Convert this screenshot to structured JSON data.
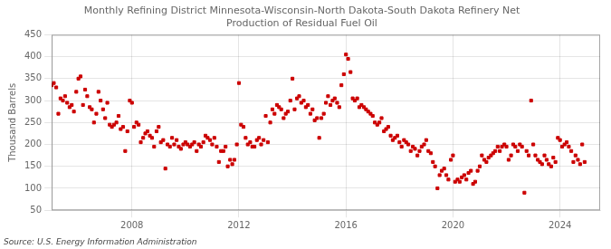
{
  "chart_data": {
    "type": "scatter",
    "title": "Monthly Refining District Minnesota-Wisconsin-North Dakota-South Dakota Refinery Net\nProduction of Residual Fuel Oil",
    "ylabel": "Thousand Barrels",
    "annotation": "Source: U.S. Energy Information Administration",
    "color": "#cc0000",
    "marker": "square",
    "grid": true,
    "xlim": [
      2005.0,
      2025.5
    ],
    "xticks": [
      2008,
      2012,
      2016,
      2020,
      2024
    ],
    "ylim": [
      50,
      450
    ],
    "yticks": [
      50,
      100,
      150,
      200,
      250,
      300,
      350,
      400,
      450
    ],
    "x": [
      2005.0,
      2005.08,
      2005.17,
      2005.25,
      2005.33,
      2005.42,
      2005.5,
      2005.58,
      2005.67,
      2005.75,
      2005.83,
      2005.92,
      2006.0,
      2006.08,
      2006.17,
      2006.25,
      2006.33,
      2006.42,
      2006.5,
      2006.58,
      2006.67,
      2006.75,
      2006.83,
      2006.92,
      2007.0,
      2007.08,
      2007.17,
      2007.25,
      2007.33,
      2007.42,
      2007.5,
      2007.58,
      2007.67,
      2007.75,
      2007.83,
      2007.92,
      2008.0,
      2008.08,
      2008.17,
      2008.25,
      2008.33,
      2008.42,
      2008.5,
      2008.58,
      2008.67,
      2008.75,
      2008.83,
      2008.92,
      2009.0,
      2009.08,
      2009.17,
      2009.25,
      2009.33,
      2009.42,
      2009.5,
      2009.58,
      2009.67,
      2009.75,
      2009.83,
      2009.92,
      2010.0,
      2010.08,
      2010.17,
      2010.25,
      2010.33,
      2010.42,
      2010.5,
      2010.58,
      2010.67,
      2010.75,
      2010.83,
      2010.92,
      2011.0,
      2011.08,
      2011.17,
      2011.25,
      2011.33,
      2011.42,
      2011.5,
      2011.58,
      2011.67,
      2011.75,
      2011.83,
      2011.92,
      2012.0,
      2012.08,
      2012.17,
      2012.25,
      2012.33,
      2012.42,
      2012.5,
      2012.58,
      2012.67,
      2012.75,
      2012.83,
      2012.92,
      2013.0,
      2013.08,
      2013.17,
      2013.25,
      2013.33,
      2013.42,
      2013.5,
      2013.58,
      2013.67,
      2013.75,
      2013.83,
      2013.92,
      2014.0,
      2014.08,
      2014.17,
      2014.25,
      2014.33,
      2014.42,
      2014.5,
      2014.58,
      2014.67,
      2014.75,
      2014.83,
      2014.92,
      2015.0,
      2015.08,
      2015.17,
      2015.25,
      2015.33,
      2015.42,
      2015.5,
      2015.58,
      2015.67,
      2015.75,
      2015.83,
      2015.92,
      2016.0,
      2016.08,
      2016.17,
      2016.25,
      2016.33,
      2016.42,
      2016.5,
      2016.58,
      2016.67,
      2016.75,
      2016.83,
      2016.92,
      2017.0,
      2017.08,
      2017.17,
      2017.25,
      2017.33,
      2017.42,
      2017.5,
      2017.58,
      2017.67,
      2017.75,
      2017.83,
      2017.92,
      2018.0,
      2018.08,
      2018.17,
      2018.25,
      2018.33,
      2018.42,
      2018.5,
      2018.58,
      2018.67,
      2018.75,
      2018.83,
      2018.92,
      2019.0,
      2019.08,
      2019.17,
      2019.25,
      2019.33,
      2019.42,
      2019.5,
      2019.58,
      2019.67,
      2019.75,
      2019.83,
      2019.92,
      2020.0,
      2020.08,
      2020.17,
      2020.25,
      2020.33,
      2020.42,
      2020.5,
      2020.58,
      2020.67,
      2020.75,
      2020.83,
      2020.92,
      2021.0,
      2021.08,
      2021.17,
      2021.25,
      2021.33,
      2021.42,
      2021.5,
      2021.58,
      2021.67,
      2021.75,
      2021.83,
      2021.92,
      2022.0,
      2022.08,
      2022.17,
      2022.25,
      2022.33,
      2022.42,
      2022.5,
      2022.58,
      2022.67,
      2022.75,
      2022.83,
      2022.92,
      2023.0,
      2023.08,
      2023.17,
      2023.25,
      2023.33,
      2023.42,
      2023.5,
      2023.58,
      2023.67,
      2023.75,
      2023.83,
      2023.92,
      2024.0,
      2024.08,
      2024.17,
      2024.25,
      2024.33,
      2024.42,
      2024.5,
      2024.58,
      2024.67,
      2024.75,
      2024.83,
      2024.92
    ],
    "values": [
      335,
      340,
      330,
      270,
      305,
      300,
      310,
      295,
      285,
      290,
      275,
      320,
      350,
      355,
      290,
      325,
      310,
      285,
      280,
      250,
      270,
      320,
      300,
      280,
      260,
      295,
      245,
      240,
      245,
      250,
      265,
      235,
      240,
      185,
      230,
      300,
      295,
      240,
      250,
      245,
      205,
      215,
      225,
      230,
      220,
      215,
      195,
      230,
      240,
      205,
      210,
      145,
      200,
      195,
      215,
      200,
      210,
      195,
      190,
      200,
      205,
      200,
      195,
      200,
      205,
      185,
      200,
      195,
      205,
      220,
      215,
      210,
      200,
      215,
      195,
      160,
      185,
      185,
      195,
      150,
      165,
      155,
      165,
      200,
      340,
      245,
      240,
      215,
      200,
      205,
      195,
      195,
      210,
      215,
      200,
      210,
      265,
      205,
      250,
      280,
      270,
      290,
      285,
      280,
      260,
      270,
      275,
      300,
      350,
      280,
      305,
      310,
      295,
      300,
      285,
      290,
      270,
      280,
      255,
      260,
      215,
      260,
      270,
      295,
      310,
      290,
      300,
      305,
      295,
      285,
      335,
      360,
      405,
      395,
      365,
      305,
      300,
      305,
      285,
      290,
      285,
      280,
      275,
      270,
      265,
      250,
      245,
      250,
      260,
      230,
      235,
      240,
      220,
      210,
      215,
      220,
      205,
      195,
      210,
      205,
      200,
      185,
      195,
      190,
      175,
      185,
      195,
      200,
      210,
      185,
      180,
      160,
      150,
      100,
      130,
      140,
      145,
      130,
      120,
      165,
      175,
      115,
      120,
      115,
      125,
      130,
      120,
      135,
      140,
      110,
      115,
      140,
      150,
      175,
      165,
      160,
      170,
      175,
      180,
      185,
      195,
      185,
      195,
      200,
      195,
      165,
      175,
      200,
      195,
      185,
      200,
      195,
      90,
      185,
      175,
      300,
      200,
      175,
      165,
      160,
      155,
      175,
      165,
      155,
      150,
      170,
      160,
      215,
      210,
      195,
      200,
      205,
      195,
      185,
      160,
      175,
      165,
      155,
      200,
      160
    ]
  }
}
